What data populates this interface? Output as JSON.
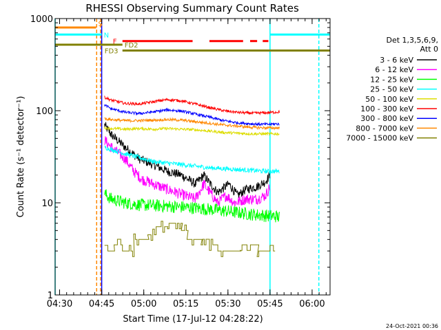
{
  "chart_data": {
    "type": "line",
    "title": "RHESSI Observing Summary Count Rates",
    "xlabel": "Start Time (17-Jul-12 04:28:22)",
    "ylabel": "Count Rate (s⁻¹ detector⁻¹)",
    "yscale": "log",
    "ylim": [
      1,
      1000
    ],
    "xlim_minutes": [
      0,
      98
    ],
    "y_ticks": [
      "1",
      "10",
      "100",
      "1000"
    ],
    "x_ticks": [
      {
        "label": "04:30",
        "t": 1.6
      },
      {
        "label": "04:45",
        "t": 16.6
      },
      {
        "label": "05:00",
        "t": 31.6
      },
      {
        "label": "05:15",
        "t": 46.6
      },
      {
        "label": "05:30",
        "t": 61.6
      },
      {
        "label": "05:45",
        "t": 76.6
      },
      {
        "label": "06:00",
        "t": 91.6
      }
    ],
    "legend_header": [
      "Det 1,3,5,6,9,",
      "Att 0"
    ],
    "series": [
      {
        "name": "3 - 6 keV",
        "color": "#000000",
        "points": [
          [
            17.6,
            70
          ],
          [
            20,
            55
          ],
          [
            25,
            40
          ],
          [
            30,
            30
          ],
          [
            35,
            26
          ],
          [
            40,
            22
          ],
          [
            45,
            20
          ],
          [
            50,
            16
          ],
          [
            53,
            20
          ],
          [
            56,
            15
          ],
          [
            58,
            13
          ],
          [
            62,
            16
          ],
          [
            65,
            12
          ],
          [
            68,
            14
          ],
          [
            72,
            15
          ],
          [
            75,
            17
          ],
          [
            76.6,
            20
          ]
        ],
        "noise": 0.1
      },
      {
        "name": "6 - 12 keV",
        "color": "#ff00ff",
        "points": [
          [
            17.6,
            48
          ],
          [
            20,
            40
          ],
          [
            25,
            30
          ],
          [
            28,
            22
          ],
          [
            31,
            18
          ],
          [
            35,
            16
          ],
          [
            40,
            14
          ],
          [
            43,
            13
          ],
          [
            46,
            12
          ],
          [
            50,
            11
          ],
          [
            53,
            16
          ],
          [
            56,
            12
          ],
          [
            58,
            10
          ],
          [
            61,
            12
          ],
          [
            64,
            10
          ],
          [
            68,
            11
          ],
          [
            72,
            11
          ],
          [
            75,
            12
          ],
          [
            76.6,
            15
          ]
        ],
        "noise": 0.12
      },
      {
        "name": "12 - 25 keV",
        "color": "#00ff00",
        "points": [
          [
            17.6,
            12.5
          ],
          [
            20,
            11
          ],
          [
            25,
            10
          ],
          [
            30,
            9.5
          ],
          [
            40,
            9.2
          ],
          [
            50,
            8.8
          ],
          [
            60,
            8.2
          ],
          [
            70,
            7.5
          ],
          [
            76.6,
            7.2
          ],
          [
            78,
            7.2
          ],
          [
            80,
            7
          ]
        ],
        "noise": 0.14
      },
      {
        "name": "25 - 50 keV",
        "color": "#00ffff",
        "points": [
          [
            17.6,
            40
          ],
          [
            20,
            38
          ],
          [
            25,
            34
          ],
          [
            30,
            31
          ],
          [
            35,
            28
          ],
          [
            40,
            27
          ],
          [
            45,
            26
          ],
          [
            50,
            25
          ],
          [
            55,
            24
          ],
          [
            60,
            23.5
          ],
          [
            65,
            23
          ],
          [
            70,
            22.5
          ],
          [
            75,
            22
          ],
          [
            80,
            22
          ]
        ],
        "noise": 0.05
      },
      {
        "name": "50 - 100 keV",
        "color": "#dddd00",
        "points": [
          [
            17.6,
            65
          ],
          [
            20,
            64
          ],
          [
            25,
            63
          ],
          [
            30,
            64
          ],
          [
            35,
            63
          ],
          [
            40,
            64
          ],
          [
            45,
            63
          ],
          [
            50,
            62
          ],
          [
            55,
            60
          ],
          [
            60,
            58
          ],
          [
            65,
            57
          ],
          [
            70,
            56
          ],
          [
            75,
            56
          ],
          [
            80,
            56
          ]
        ],
        "noise": 0.03
      },
      {
        "name": "100 - 300 keV",
        "color": "#ff0000",
        "points": [
          [
            17.6,
            140
          ],
          [
            20,
            130
          ],
          [
            25,
            120
          ],
          [
            30,
            118
          ],
          [
            35,
            125
          ],
          [
            40,
            132
          ],
          [
            45,
            128
          ],
          [
            50,
            118
          ],
          [
            55,
            108
          ],
          [
            60,
            100
          ],
          [
            65,
            96
          ],
          [
            70,
            94
          ],
          [
            75,
            95
          ],
          [
            80,
            97
          ]
        ],
        "noise": 0.03
      },
      {
        "name": "300 - 800 keV",
        "color": "#0000ff",
        "points": [
          [
            17.6,
            115
          ],
          [
            20,
            105
          ],
          [
            25,
            96
          ],
          [
            30,
            93
          ],
          [
            35,
            97
          ],
          [
            40,
            102
          ],
          [
            45,
            99
          ],
          [
            50,
            92
          ],
          [
            55,
            85
          ],
          [
            60,
            78
          ],
          [
            65,
            74
          ],
          [
            70,
            72
          ],
          [
            75,
            71
          ],
          [
            80,
            72
          ]
        ],
        "noise": 0.03
      },
      {
        "name": "800 - 7000 keV",
        "color": "#ff8800",
        "points": [
          [
            17.6,
            82
          ],
          [
            20,
            80
          ],
          [
            25,
            78
          ],
          [
            30,
            78
          ],
          [
            35,
            79
          ],
          [
            40,
            80
          ],
          [
            45,
            79
          ],
          [
            50,
            76
          ],
          [
            55,
            73
          ],
          [
            60,
            70
          ],
          [
            65,
            68
          ],
          [
            70,
            66
          ],
          [
            75,
            65
          ],
          [
            80,
            65
          ]
        ],
        "noise": 0.03
      },
      {
        "name": "7000 - 15000 keV",
        "color": "#808000",
        "steps": [
          [
            17.6,
            3
          ],
          [
            21,
            3.5
          ],
          [
            24,
            3
          ],
          [
            28,
            4
          ],
          [
            33,
            4.5
          ],
          [
            36,
            5.5
          ],
          [
            40,
            6
          ],
          [
            45,
            5
          ],
          [
            47,
            4
          ],
          [
            52,
            3.5
          ],
          [
            58,
            3
          ],
          [
            62,
            3
          ],
          [
            66,
            3.5
          ],
          [
            72,
            3
          ],
          [
            76,
            3
          ]
        ]
      }
    ],
    "flag_bars": [
      {
        "label": "S",
        "color": "#ff8800",
        "y": 800,
        "segments": [
          [
            0,
            14.6
          ]
        ]
      },
      {
        "label": "N",
        "color": "#00ffff",
        "y": 670,
        "segments": [
          [
            0,
            16.6
          ],
          [
            76.6,
            98
          ]
        ]
      },
      {
        "label": "F",
        "color": "#ff0000",
        "y": 570,
        "segments": [
          [
            24,
            49
          ],
          [
            55,
            67
          ],
          [
            69.5,
            72
          ],
          [
            74,
            76
          ]
        ]
      },
      {
        "label": "FD2",
        "color": "#808000",
        "y": 520,
        "segments": [
          [
            0,
            24
          ]
        ]
      },
      {
        "label": "FD3",
        "color": "#808000",
        "y": 450,
        "segments": [
          [
            24,
            98
          ]
        ]
      }
    ],
    "vlines": [
      {
        "t": 0.0,
        "color": "#00ffff",
        "style": "solid"
      },
      {
        "t": 14.8,
        "color": "#ff8800",
        "style": "dashed"
      },
      {
        "t": 16.2,
        "color": "#ff8800",
        "style": "dashed"
      },
      {
        "t": 16.6,
        "color": "#0000ff",
        "style": "solid"
      },
      {
        "t": 76.6,
        "color": "#00ffff",
        "style": "solid"
      },
      {
        "t": 94.0,
        "color": "#00ffff",
        "style": "dashed"
      }
    ],
    "timestamp": "24-Oct-2021 00:36"
  }
}
